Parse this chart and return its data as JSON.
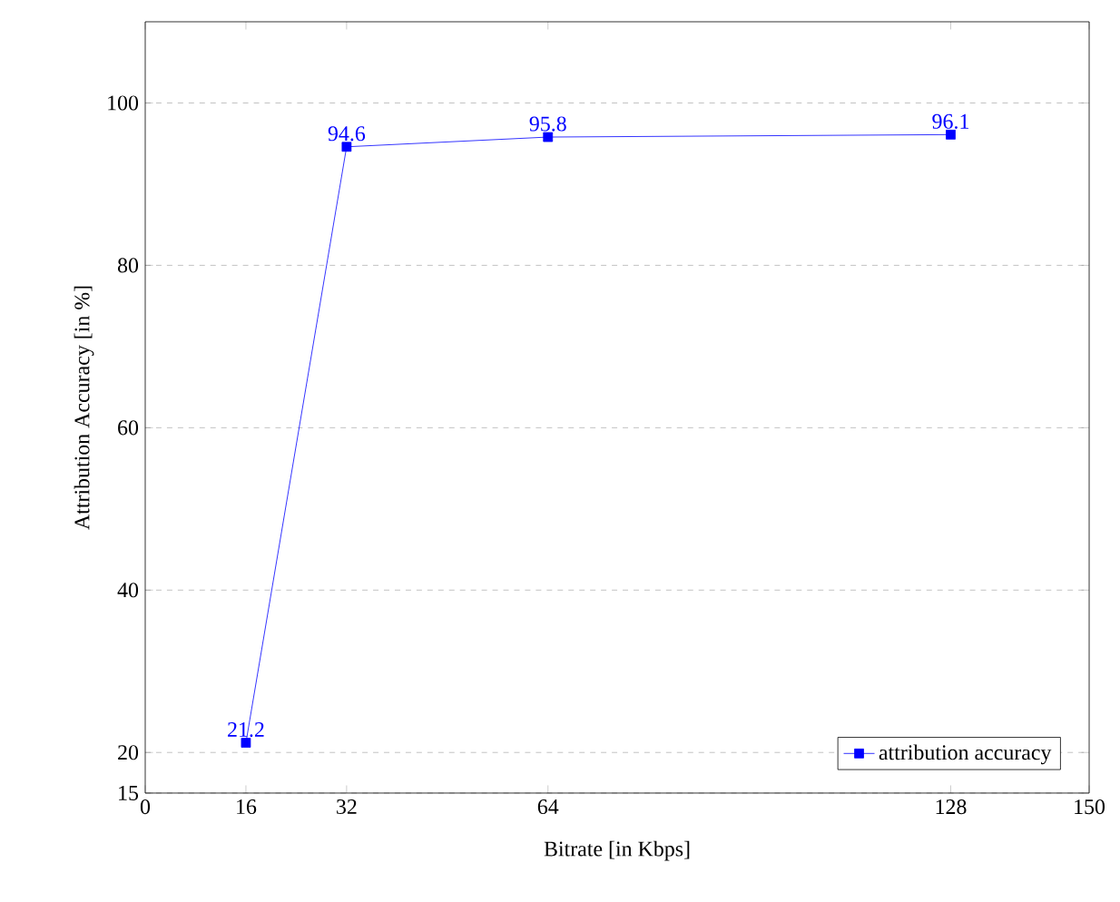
{
  "chart_data": {
    "type": "line",
    "xlabel": "Bitrate [in Kbps]",
    "ylabel": "Attribution Accuracy [in %]",
    "x": [
      16,
      32,
      64,
      128
    ],
    "series": [
      {
        "name": "attribution accuracy",
        "color": "#0000ff",
        "values": [
          21.2,
          94.6,
          95.8,
          96.1
        ]
      }
    ],
    "xlim": [
      0,
      150
    ],
    "xticks": [
      0,
      16,
      32,
      64,
      128,
      150
    ],
    "ylim": [
      15,
      110
    ],
    "yticks": [
      15,
      20,
      40,
      60,
      80,
      100
    ],
    "grid": "y",
    "legend": "bottom right",
    "marker": "square",
    "line_style": "solid",
    "data_labels": true
  }
}
